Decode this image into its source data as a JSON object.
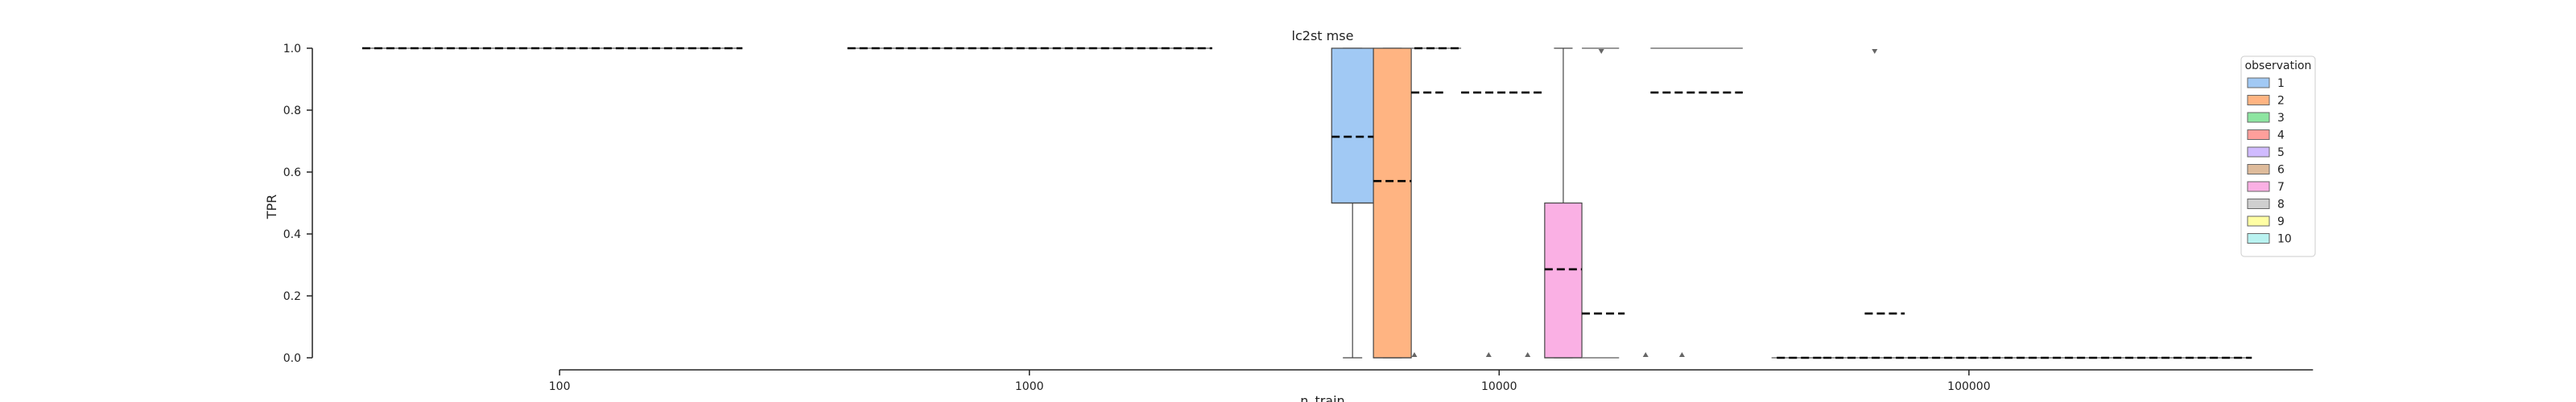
{
  "chart_data": {
    "type": "box",
    "title": "lc2st mse",
    "xlabel": "n_train",
    "ylabel": "TPR",
    "xscale": "log",
    "xlim": [
      30,
      600000
    ],
    "ylim": [
      0,
      1
    ],
    "xticks": [
      {
        "value": 100,
        "label": "100"
      },
      {
        "value": 1000,
        "label": "1000"
      },
      {
        "value": 10000,
        "label": "10000"
      },
      {
        "value": 100000,
        "label": "100000"
      }
    ],
    "yticks": [
      {
        "value": 0.0,
        "label": "0.0"
      },
      {
        "value": 0.2,
        "label": "0.2"
      },
      {
        "value": 0.4,
        "label": "0.4"
      },
      {
        "value": 0.6,
        "label": "0.6"
      },
      {
        "value": 0.8,
        "label": "0.8"
      },
      {
        "value": 1.0,
        "label": "1.0"
      }
    ],
    "legend": {
      "title": "observation",
      "placement": "right",
      "entries": [
        {
          "label": "1",
          "color": "#a1c9f4"
        },
        {
          "label": "2",
          "color": "#ffb482"
        },
        {
          "label": "3",
          "color": "#8de5a1"
        },
        {
          "label": "4",
          "color": "#ff9f9b"
        },
        {
          "label": "5",
          "color": "#d0bbff"
        },
        {
          "label": "6",
          "color": "#debb9b"
        },
        {
          "label": "7",
          "color": "#fab0e4"
        },
        {
          "label": "8",
          "color": "#cfcfcf"
        },
        {
          "label": "9",
          "color": "#fffea3"
        },
        {
          "label": "10",
          "color": "#b9f2f0"
        }
      ]
    },
    "boxes": [
      {
        "observation": "1",
        "x0": 4400,
        "x1": 5400,
        "q1": 0.5,
        "q3": 1.0,
        "median": 0.5,
        "whisker_low": 0.0,
        "whisker_high": 1.0
      },
      {
        "observation": "2",
        "x0": 5400,
        "x1": 6500,
        "q1": 0.0,
        "q3": 1.0,
        "median": 0.0,
        "whisker_low": 0.0,
        "whisker_high": 1.0
      },
      {
        "observation": "7",
        "x0": 12500,
        "x1": 15000,
        "q1": 0.0,
        "q3": 0.5,
        "median": 0.0,
        "whisker_low": 0.0,
        "whisker_high": 1.0
      }
    ],
    "flat_lines": [
      {
        "observation": "1",
        "x0": 38,
        "x1": 245,
        "y": 1.0
      },
      {
        "observation": "2",
        "x0": 410,
        "x1": 2450,
        "y": 1.0
      },
      {
        "observation": "4",
        "x0": 6500,
        "x1": 8300,
        "y": 1.0
      },
      {
        "observation": "7",
        "x0": 15000,
        "x1": 18000,
        "y": 1.0
      },
      {
        "observation": "7",
        "x0": 15000,
        "x1": 18000,
        "y": 0.0
      },
      {
        "observation": "8",
        "x0": 21000,
        "x1": 33000,
        "y": 1.0
      },
      {
        "observation": "9",
        "x0": 38000,
        "x1": 400000,
        "y": 0.0
      }
    ],
    "mean_lines": [
      {
        "x0": 38,
        "x1": 245,
        "y": 1.0
      },
      {
        "x0": 410,
        "x1": 2450,
        "y": 1.0
      },
      {
        "x0": 4400,
        "x1": 5400,
        "y": 0.714
      },
      {
        "x0": 5400,
        "x1": 6500,
        "y": 0.571
      },
      {
        "x0": 6500,
        "x1": 7600,
        "y": 0.857
      },
      {
        "x0": 6600,
        "x1": 8300,
        "y": 1.0
      },
      {
        "x0": 8300,
        "x1": 12500,
        "y": 0.857
      },
      {
        "x0": 12500,
        "x1": 15000,
        "y": 0.286
      },
      {
        "x0": 15000,
        "x1": 18500,
        "y": 0.143
      },
      {
        "x0": 21000,
        "x1": 33000,
        "y": 0.857
      },
      {
        "x0": 39000,
        "x1": 49000,
        "y": 0.0
      },
      {
        "x0": 49000,
        "x1": 400000,
        "y": 0.0
      },
      {
        "x0": 60000,
        "x1": 73000,
        "y": 0.143
      }
    ],
    "outliers": [
      {
        "x": 6600,
        "y": 0.0
      },
      {
        "x": 9500,
        "y": 0.0
      },
      {
        "x": 11500,
        "y": 0.0
      },
      {
        "x": 16500,
        "y": 1.0
      },
      {
        "x": 20500,
        "y": 0.0
      },
      {
        "x": 24500,
        "y": 0.0
      },
      {
        "x": 63000,
        "y": 1.0
      }
    ]
  }
}
